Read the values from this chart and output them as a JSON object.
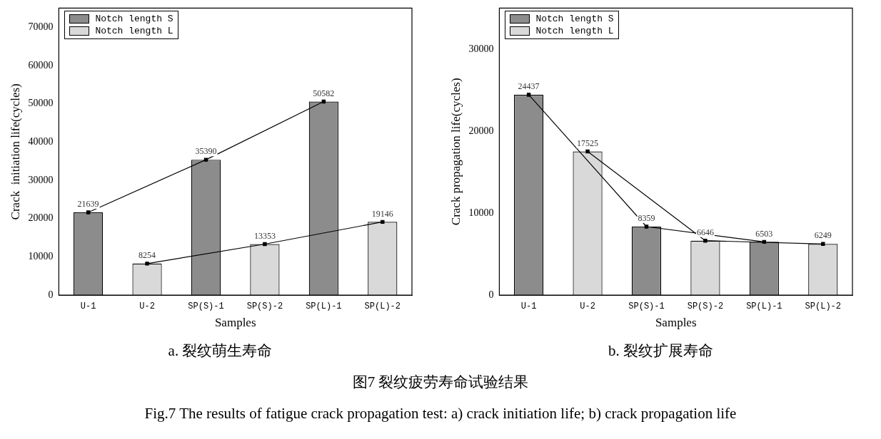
{
  "chart_data": [
    {
      "type": "bar",
      "title": "a. 裂纹萌生寿命",
      "xlabel": "Samples",
      "ylabel": "Crack  initiation life(cycles)",
      "categories": [
        "U-1",
        "U-2",
        "SP(S)-1",
        "SP(S)-2",
        "SP(L)-1",
        "SP(L)-2"
      ],
      "series": [
        {
          "name": "Notch length S",
          "color": "#8c8c8c",
          "values": [
            21639,
            null,
            35390,
            null,
            50582,
            null
          ],
          "value_labels": [
            "21639",
            null,
            "35390",
            null,
            "50582",
            null
          ]
        },
        {
          "name": "Notch length L",
          "color": "#d9d9d9",
          "values": [
            null,
            8254,
            null,
            13353,
            null,
            19146
          ],
          "value_labels": [
            null,
            "8254",
            null,
            "13353",
            null,
            "19146"
          ]
        },
        {
          "type": "line",
          "color": "#000000",
          "values": [
            21639,
            null,
            35390,
            null,
            50582,
            null
          ]
        },
        {
          "type": "line",
          "color": "#000000",
          "values": [
            null,
            8254,
            null,
            13353,
            null,
            19146
          ]
        }
      ],
      "ylim": [
        0,
        75000
      ],
      "yticks": [
        0,
        10000,
        20000,
        30000,
        40000,
        50000,
        60000,
        70000
      ],
      "grid": false,
      "legend": "top left",
      "marker": "square"
    },
    {
      "type": "bar",
      "title": "b. 裂纹扩展寿命",
      "xlabel": "Samples",
      "ylabel": "Crack propagation life(cycles)",
      "categories": [
        "U-1",
        "U-2",
        "SP(S)-1",
        "SP(S)-2",
        "SP(L)-1",
        "SP(L)-2"
      ],
      "series": [
        {
          "name": "Notch length S",
          "color": "#8c8c8c",
          "values": [
            24437,
            null,
            8359,
            null,
            6503,
            null
          ],
          "value_labels": [
            "24437",
            null,
            "8359",
            null,
            "6503",
            null
          ]
        },
        {
          "name": "Notch length L",
          "color": "#d9d9d9",
          "values": [
            null,
            17525,
            null,
            6646,
            null,
            6249
          ],
          "value_labels": [
            null,
            "17525",
            null,
            "6646",
            null,
            "6249"
          ]
        },
        {
          "type": "line",
          "color": "#000000",
          "values": [
            24437,
            null,
            8359,
            null,
            6503,
            null
          ]
        },
        {
          "type": "line",
          "color": "#000000",
          "values": [
            null,
            17525,
            null,
            6646,
            null,
            6249
          ]
        }
      ],
      "ylim": [
        0,
        35000
      ],
      "yticks": [
        0,
        10000,
        20000,
        30000
      ],
      "grid": false,
      "legend": "top left",
      "marker": "square",
      "annotations": [
        "图7  裂纹疲劳寿命试验结果",
        "Fig.7 The results of fatigue crack propagation test: a) crack initiation life; b) crack propagation life"
      ]
    }
  ]
}
